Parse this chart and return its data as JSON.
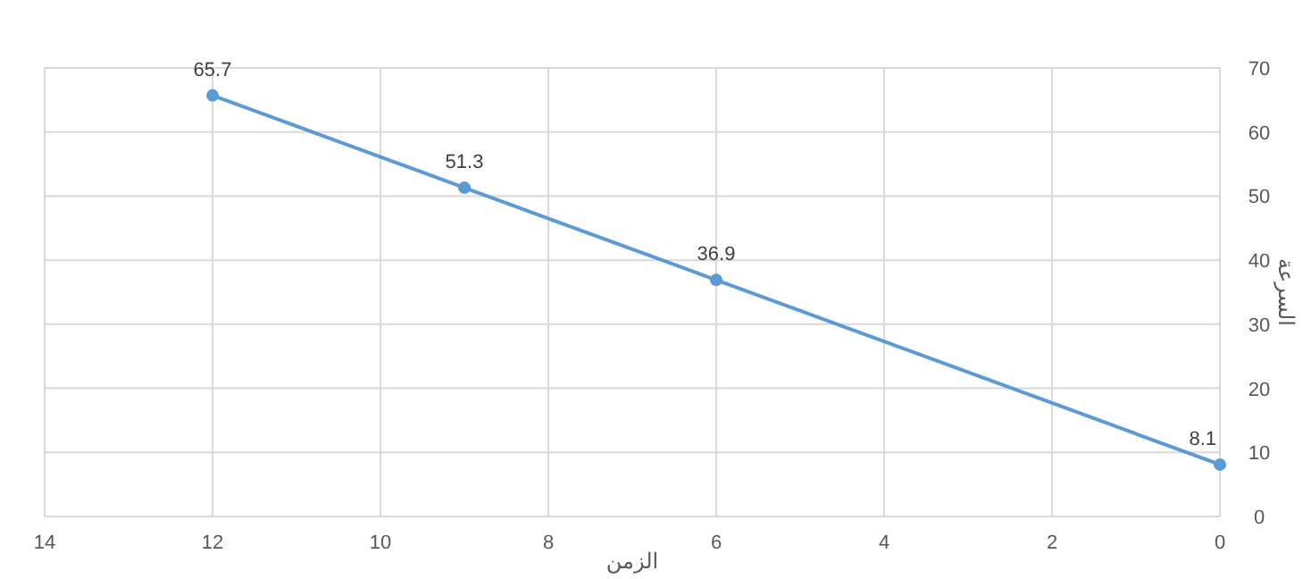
{
  "chart_data": {
    "type": "line",
    "xlabel": "الزمن",
    "ylabel": "السرعة",
    "x": [
      12,
      9,
      6,
      0
    ],
    "values": [
      65.7,
      51.3,
      36.9,
      8.1
    ],
    "color": "#5b9bd5",
    "marker": "circle",
    "line_style": "solid",
    "data_labels": true,
    "grid": true,
    "xlim": [
      14,
      0
    ],
    "xticks": [
      14,
      12,
      10,
      8,
      6,
      4,
      2,
      0
    ],
    "ylim": [
      0,
      70
    ],
    "yticks": [
      0,
      10,
      20,
      30,
      40,
      50,
      60,
      70
    ]
  }
}
